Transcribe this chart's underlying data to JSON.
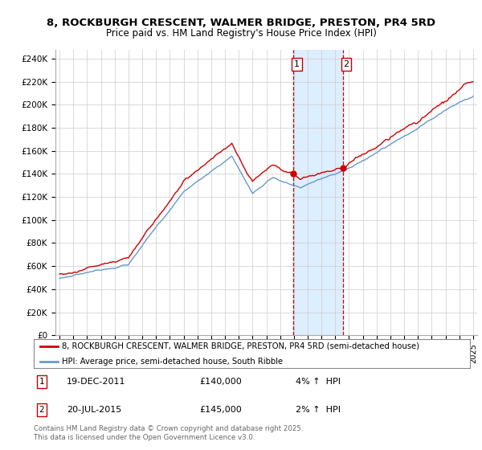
{
  "title_line1": "8, ROCKBURGH CRESCENT, WALMER BRIDGE, PRESTON, PR4 5RD",
  "title_line2": "Price paid vs. HM Land Registry's House Price Index (HPI)",
  "ylabel_ticks": [
    "£0",
    "£20K",
    "£40K",
    "£60K",
    "£80K",
    "£100K",
    "£120K",
    "£140K",
    "£160K",
    "£180K",
    "£200K",
    "£220K",
    "£240K"
  ],
  "ytick_values": [
    0,
    20000,
    40000,
    60000,
    80000,
    100000,
    120000,
    140000,
    160000,
    180000,
    200000,
    220000,
    240000
  ],
  "ylim": [
    0,
    248000
  ],
  "xlim_start": 1994.7,
  "xlim_end": 2025.3,
  "sale1_date": 2011.97,
  "sale1_label": "1",
  "sale1_price": 140000,
  "sale2_date": 2015.55,
  "sale2_label": "2",
  "sale2_price": 145000,
  "red_line_color": "#cc0000",
  "blue_line_color": "#6699cc",
  "shaded_region_color": "#ddeeff",
  "dashed_line_color": "#cc0000",
  "grid_color": "#cccccc",
  "legend_label_red": "8, ROCKBURGH CRESCENT, WALMER BRIDGE, PRESTON, PR4 5RD (semi-detached house)",
  "legend_label_blue": "HPI: Average price, semi-detached house, South Ribble",
  "footer_text": "Contains HM Land Registry data © Crown copyright and database right 2025.\nThis data is licensed under the Open Government Licence v3.0.",
  "background_color": "#ffffff",
  "xtick_years": [
    1995,
    1996,
    1997,
    1998,
    1999,
    2000,
    2001,
    2002,
    2003,
    2004,
    2005,
    2006,
    2007,
    2008,
    2009,
    2010,
    2011,
    2012,
    2013,
    2014,
    2015,
    2016,
    2017,
    2018,
    2019,
    2020,
    2021,
    2022,
    2023,
    2024,
    2025
  ]
}
